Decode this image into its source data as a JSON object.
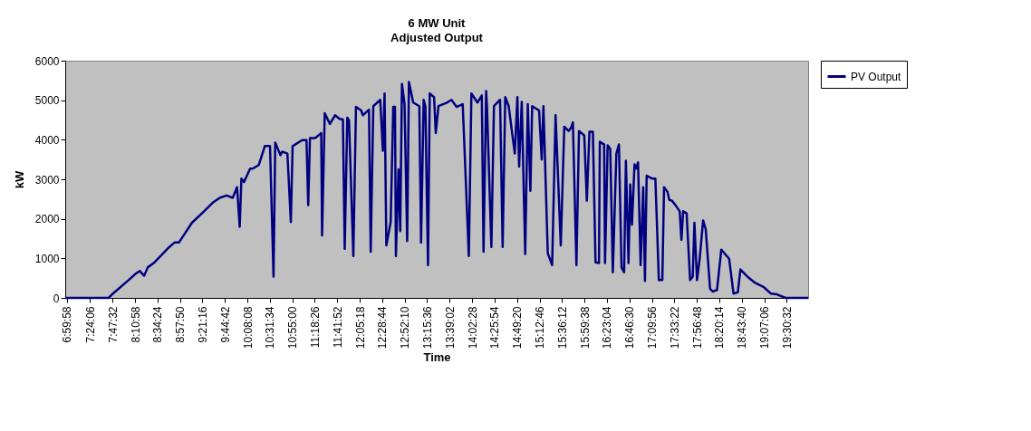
{
  "chart_data": {
    "type": "line",
    "title": "6 MW Unit",
    "subtitle": "Adjusted Output",
    "xlabel": "Time",
    "ylabel": "kW",
    "x": [
      6.97,
      7.724,
      7.799,
      8.071,
      8.192,
      8.267,
      8.342,
      8.403,
      8.523,
      8.78,
      8.87,
      8.946,
      9.172,
      9.383,
      9.534,
      9.655,
      9.775,
      9.881,
      9.956,
      10.002,
      10.032,
      10.077,
      10.183,
      10.228,
      10.333,
      10.439,
      10.529,
      10.59,
      10.62,
      10.71,
      10.741,
      10.831,
      10.891,
      10.922,
      11.087,
      11.163,
      11.193,
      11.223,
      11.314,
      11.389,
      11.419,
      11.434,
      11.48,
      11.57,
      11.661,
      11.736,
      11.796,
      11.827,
      11.872,
      11.902,
      11.977,
      12.023,
      12.113,
      12.143,
      12.249,
      12.279,
      12.324,
      12.445,
      12.49,
      12.52,
      12.551,
      12.626,
      12.671,
      12.701,
      12.717,
      12.762,
      12.792,
      12.822,
      12.867,
      12.913,
      12.943,
      13.018,
      13.124,
      13.154,
      13.199,
      13.229,
      13.275,
      13.305,
      13.38,
      13.41,
      13.456,
      13.606,
      13.682,
      13.772,
      13.878,
      13.984,
      14.029,
      14.134,
      14.21,
      14.24,
      14.285,
      14.3,
      14.376,
      14.421,
      14.527,
      14.572,
      14.617,
      14.677,
      14.783,
      14.828,
      14.858,
      14.904,
      14.964,
      15.009,
      15.054,
      15.085,
      15.205,
      15.251,
      15.281,
      15.356,
      15.432,
      15.492,
      15.582,
      15.643,
      15.718,
      15.763,
      15.793,
      15.854,
      15.899,
      15.99,
      16.035,
      16.08,
      16.14,
      16.186,
      16.246,
      16.261,
      16.336,
      16.351,
      16.397,
      16.442,
      16.487,
      16.548,
      16.593,
      16.638,
      16.683,
      16.714,
      16.759,
      16.789,
      16.819,
      16.864,
      16.894,
      16.925,
      16.97,
      17.015,
      17.045,
      17.075,
      17.166,
      17.226,
      17.287,
      17.347,
      17.377,
      17.437,
      17.468,
      17.513,
      17.573,
      17.649,
      17.679,
      17.709,
      17.769,
      17.83,
      17.875,
      17.905,
      17.95,
      17.996,
      18.056,
      18.101,
      18.177,
      18.222,
      18.297,
      18.372,
      18.508,
      18.584,
      18.659,
      18.704,
      18.825,
      18.961,
      19.112,
      19.232,
      19.338,
      19.489,
      19.881
    ],
    "series": [
      {
        "name": "PV Output",
        "color": "#000080",
        "values": [
          0,
          0,
          110,
          450,
          610,
          680,
          560,
          770,
          900,
          1290,
          1400,
          1400,
          1900,
          2190,
          2410,
          2530,
          2590,
          2530,
          2800,
          1800,
          3020,
          2930,
          3270,
          3270,
          3360,
          3840,
          3840,
          540,
          3930,
          3610,
          3700,
          3650,
          1920,
          3840,
          3990,
          3990,
          2350,
          4040,
          4040,
          4130,
          4170,
          1580,
          4670,
          4400,
          4620,
          4530,
          4510,
          1240,
          4560,
          4490,
          1060,
          4830,
          4740,
          4620,
          4760,
          1170,
          4850,
          5010,
          3720,
          5170,
          1330,
          1920,
          4830,
          4830,
          1060,
          3250,
          1690,
          5410,
          4900,
          1440,
          5460,
          4940,
          4850,
          1400,
          5010,
          4850,
          830,
          5170,
          5080,
          4170,
          4850,
          4940,
          5010,
          4830,
          4900,
          1060,
          5170,
          4940,
          5120,
          1170,
          5230,
          4830,
          1290,
          4850,
          5010,
          1290,
          5080,
          4850,
          3650,
          5080,
          3320,
          4960,
          1110,
          4900,
          2710,
          4850,
          4740,
          3500,
          4850,
          1130,
          830,
          4620,
          1330,
          4330,
          4220,
          4310,
          4440,
          830,
          4220,
          4110,
          2460,
          4200,
          4200,
          900,
          880,
          3950,
          3880,
          880,
          3860,
          3770,
          650,
          3650,
          3880,
          770,
          650,
          3470,
          880,
          2870,
          1850,
          3380,
          3270,
          3430,
          830,
          2800,
          430,
          3090,
          3020,
          3020,
          450,
          450,
          2800,
          2680,
          2480,
          2460,
          2350,
          2190,
          1470,
          2190,
          2140,
          450,
          540,
          1900,
          450,
          990,
          1960,
          1740,
          230,
          160,
          200,
          1220,
          990,
          110,
          140,
          720,
          540,
          380,
          270,
          110,
          90,
          0,
          0
        ]
      }
    ],
    "xlim": [
      6.97,
      19.881
    ],
    "xticks": [
      {
        "value": 6.9994,
        "label": "6:59:58"
      },
      {
        "value": 7.4017,
        "label": "7:24:06"
      },
      {
        "value": 7.7922,
        "label": "7:47:32"
      },
      {
        "value": 8.1828,
        "label": "8:10:58"
      },
      {
        "value": 8.5733,
        "label": "8:34:24"
      },
      {
        "value": 8.9639,
        "label": "8:57:50"
      },
      {
        "value": 9.3544,
        "label": "9:21:16"
      },
      {
        "value": 9.745,
        "label": "9:44:42"
      },
      {
        "value": 10.1356,
        "label": "10:08:08"
      },
      {
        "value": 10.5261,
        "label": "10:31:34"
      },
      {
        "value": 10.9167,
        "label": "10:55:00"
      },
      {
        "value": 11.3072,
        "label": "11:18:26"
      },
      {
        "value": 11.6978,
        "label": "11:41:52"
      },
      {
        "value": 12.0883,
        "label": "12:05:18"
      },
      {
        "value": 12.4789,
        "label": "12:28:44"
      },
      {
        "value": 12.8694,
        "label": "12:52:10"
      },
      {
        "value": 13.26,
        "label": "13:15:36"
      },
      {
        "value": 13.6506,
        "label": "13:39:02"
      },
      {
        "value": 14.0411,
        "label": "14:02:28"
      },
      {
        "value": 14.4317,
        "label": "14:25:54"
      },
      {
        "value": 14.8222,
        "label": "14:49:20"
      },
      {
        "value": 15.2128,
        "label": "15:12:46"
      },
      {
        "value": 15.6033,
        "label": "15:36:12"
      },
      {
        "value": 15.9939,
        "label": "15:59:38"
      },
      {
        "value": 16.3844,
        "label": "16:23:04"
      },
      {
        "value": 16.775,
        "label": "16:46:30"
      },
      {
        "value": 17.1656,
        "label": "17:09:56"
      },
      {
        "value": 17.5561,
        "label": "17:33:22"
      },
      {
        "value": 17.9467,
        "label": "17:56:48"
      },
      {
        "value": 18.3372,
        "label": "18:20:14"
      },
      {
        "value": 18.7278,
        "label": "18:43:40"
      },
      {
        "value": 19.1183,
        "label": "19:07:06"
      },
      {
        "value": 19.5089,
        "label": "19:30:32"
      }
    ],
    "ylim": [
      0,
      6000
    ],
    "yticks": [
      0,
      1000,
      2000,
      3000,
      4000,
      5000,
      6000
    ],
    "grid": false,
    "legend": "right",
    "marker": "none",
    "line_style": "solid"
  }
}
